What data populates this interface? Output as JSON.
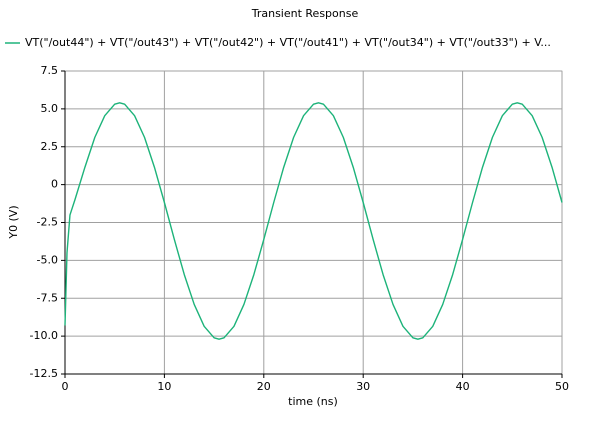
{
  "chart_data": {
    "type": "line",
    "title": "Transient Response",
    "xlabel": "time (ns)",
    "ylabel": "Y0 (V)",
    "x": [
      0,
      0.2,
      0.5,
      1,
      2,
      3,
      4,
      5,
      5.5,
      6,
      7,
      8,
      9,
      10,
      11,
      12,
      13,
      14,
      15,
      15.5,
      16,
      17,
      18,
      19,
      20,
      21,
      22,
      23,
      24,
      25,
      25.5,
      26,
      27,
      28,
      29,
      30,
      31,
      32,
      33,
      34,
      35,
      35.5,
      36,
      37,
      38,
      39,
      40,
      41,
      42,
      43,
      44,
      45,
      45.5,
      46,
      47,
      48,
      49,
      50
    ],
    "series": [
      {
        "name": "VT(\"/out44\") + VT(\"/out43\") + VT(\"/out42\") + VT(\"/out41\") + VT(\"/out34\") + VT(\"/out33\") + V...",
        "color": "#1db37a",
        "values": [
          -9.3,
          -4.5,
          -2.0,
          -1.0,
          1.14,
          3.12,
          4.55,
          5.31,
          5.4,
          5.31,
          4.55,
          3.12,
          1.14,
          -1.18,
          -3.62,
          -5.94,
          -7.91,
          -9.35,
          -10.11,
          -10.2,
          -10.11,
          -9.35,
          -7.91,
          -5.94,
          -3.62,
          -1.18,
          1.14,
          3.12,
          4.55,
          5.31,
          5.4,
          5.31,
          4.55,
          3.12,
          1.14,
          -1.18,
          -3.62,
          -5.94,
          -7.91,
          -9.35,
          -10.11,
          -10.2,
          -10.11,
          -9.35,
          -7.91,
          -5.94,
          -3.62,
          -1.18,
          1.14,
          3.12,
          4.55,
          5.31,
          5.4,
          5.31,
          4.55,
          3.12,
          1.14,
          -1.18
        ]
      }
    ],
    "xlim": [
      0,
      50
    ],
    "xticks": [
      0,
      10,
      20,
      30,
      40,
      50
    ],
    "ylim": [
      -12.5,
      7.5
    ],
    "yticks": [
      7.5,
      {
        "value": 5,
        "label": "5.0"
      },
      2.5,
      0,
      -2.5,
      {
        "value": -5,
        "label": "-5.0"
      },
      -7.5,
      {
        "value": -10,
        "label": "-10.0"
      },
      -12.5
    ],
    "grid": true
  }
}
